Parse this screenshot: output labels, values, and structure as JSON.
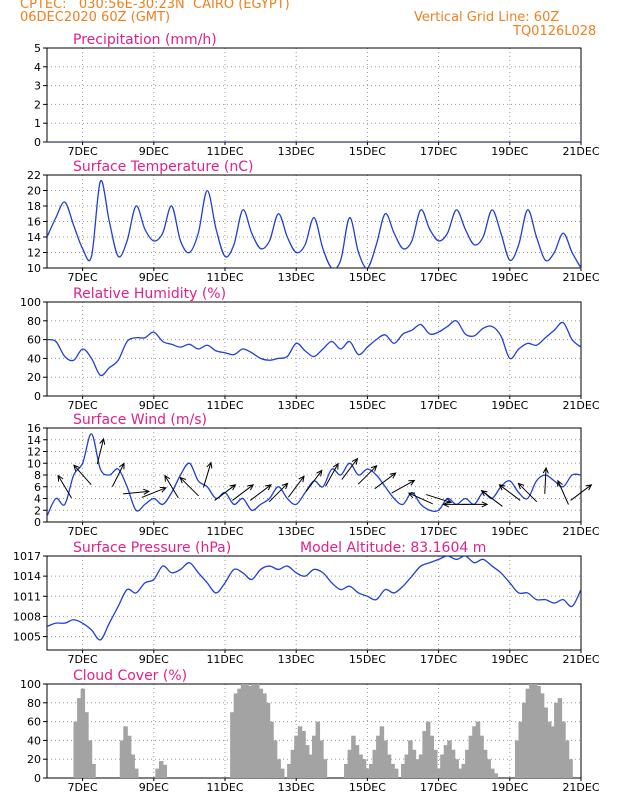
{
  "header": {
    "line1_left": "CPTEC:   030:56E-30:23N  CAIRO (EGYPT)",
    "line2_left": "06DEC2020 60Z (GMT)",
    "line1_right": "Vertical Grid Line: 60Z",
    "line2_right": "TQ0126L028"
  },
  "colors": {
    "header": "#f07f1e",
    "title": "#e0208c",
    "line": "#1f3fd8",
    "bars": "#a3a3a3",
    "arrows": "#000000"
  },
  "chart_data": [
    {
      "type": "line",
      "title": "Precipitation (mm/h)",
      "x_ticks": [
        "7DEC",
        "9DEC",
        "11DEC",
        "13DEC",
        "15DEC",
        "17DEC",
        "19DEC",
        "21DEC"
      ],
      "ylim": [
        0,
        5
      ],
      "y_ticks": [
        0,
        1,
        2,
        3,
        4,
        5
      ],
      "x": [
        6.0,
        21.0
      ],
      "values": [
        0,
        0
      ]
    },
    {
      "type": "line",
      "title": "Surface Temperature (nC)",
      "x_ticks": [
        "7DEC",
        "9DEC",
        "11DEC",
        "13DEC",
        "15DEC",
        "17DEC",
        "19DEC",
        "21DEC"
      ],
      "ylim": [
        10,
        22
      ],
      "y_ticks": [
        10,
        12,
        14,
        16,
        18,
        20,
        22
      ],
      "x": [
        6.0,
        6.25,
        6.5,
        6.75,
        7.0,
        7.25,
        7.5,
        7.75,
        8.0,
        8.25,
        8.5,
        8.75,
        9.0,
        9.25,
        9.5,
        9.75,
        10.0,
        10.25,
        10.5,
        10.75,
        11.0,
        11.25,
        11.5,
        11.75,
        12.0,
        12.25,
        12.5,
        12.75,
        13.0,
        13.25,
        13.5,
        13.75,
        14.0,
        14.25,
        14.5,
        14.75,
        15.0,
        15.25,
        15.5,
        15.75,
        16.0,
        16.25,
        16.5,
        16.75,
        17.0,
        17.25,
        17.5,
        17.75,
        18.0,
        18.25,
        18.5,
        18.75,
        19.0,
        19.25,
        19.5,
        19.75,
        20.0,
        20.25,
        20.5,
        20.75,
        21.0
      ],
      "values": [
        14.0,
        16.5,
        18.5,
        15.5,
        12.5,
        11.5,
        21.2,
        16.0,
        11.5,
        13.5,
        18.0,
        15.0,
        13.5,
        14.5,
        18.0,
        13.5,
        12.0,
        14.5,
        20.0,
        15.0,
        11.5,
        13.0,
        17.5,
        14.5,
        12.5,
        13.5,
        17.0,
        14.0,
        12.0,
        13.0,
        16.5,
        12.5,
        10.0,
        11.0,
        16.5,
        12.0,
        10.0,
        13.0,
        17.0,
        14.5,
        12.5,
        13.5,
        17.5,
        15.0,
        13.5,
        14.5,
        17.5,
        15.0,
        13.0,
        14.0,
        17.5,
        14.5,
        11.0,
        13.0,
        17.5,
        14.0,
        11.0,
        12.0,
        14.5,
        12.0,
        10.0
      ]
    },
    {
      "type": "line",
      "title": "Relative Humidity (%)",
      "x_ticks": [
        "7DEC",
        "9DEC",
        "11DEC",
        "13DEC",
        "15DEC",
        "17DEC",
        "19DEC",
        "21DEC"
      ],
      "ylim": [
        0,
        100
      ],
      "y_ticks": [
        0,
        20,
        40,
        60,
        80,
        100
      ],
      "x": [
        6.0,
        6.25,
        6.5,
        6.75,
        7.0,
        7.25,
        7.5,
        7.75,
        8.0,
        8.25,
        8.5,
        8.75,
        9.0,
        9.25,
        9.5,
        9.75,
        10.0,
        10.25,
        10.5,
        10.75,
        11.0,
        11.25,
        11.5,
        11.75,
        12.0,
        12.25,
        12.5,
        12.75,
        13.0,
        13.25,
        13.5,
        13.75,
        14.0,
        14.25,
        14.5,
        14.75,
        15.0,
        15.25,
        15.5,
        15.75,
        16.0,
        16.25,
        16.5,
        16.75,
        17.0,
        17.25,
        17.5,
        17.75,
        18.0,
        18.25,
        18.5,
        18.75,
        19.0,
        19.25,
        19.5,
        19.75,
        20.0,
        20.25,
        20.5,
        20.75,
        21.0
      ],
      "values": [
        60,
        58,
        42,
        38,
        50,
        40,
        22,
        30,
        38,
        58,
        62,
        62,
        68,
        58,
        55,
        52,
        55,
        50,
        54,
        48,
        46,
        44,
        50,
        46,
        40,
        38,
        40,
        42,
        56,
        48,
        42,
        50,
        58,
        50,
        58,
        44,
        52,
        60,
        65,
        56,
        66,
        70,
        76,
        66,
        68,
        74,
        80,
        66,
        64,
        72,
        74,
        64,
        40,
        50,
        56,
        54,
        62,
        70,
        78,
        60,
        52
      ]
    },
    {
      "type": "line",
      "title": "Surface Wind (m/s)",
      "x_ticks": [
        "7DEC",
        "9DEC",
        "11DEC",
        "13DEC",
        "15DEC",
        "17DEC",
        "19DEC",
        "21DEC"
      ],
      "ylim": [
        0,
        16
      ],
      "y_ticks": [
        0,
        2,
        4,
        6,
        8,
        10,
        12,
        14,
        16
      ],
      "x": [
        6.0,
        6.25,
        6.5,
        6.75,
        7.0,
        7.25,
        7.5,
        7.75,
        8.0,
        8.25,
        8.5,
        8.75,
        9.0,
        9.25,
        9.5,
        9.75,
        10.0,
        10.25,
        10.5,
        10.75,
        11.0,
        11.25,
        11.5,
        11.75,
        12.0,
        12.25,
        12.5,
        12.75,
        13.0,
        13.25,
        13.5,
        13.75,
        14.0,
        14.25,
        14.5,
        14.75,
        15.0,
        15.25,
        15.5,
        15.75,
        16.0,
        16.25,
        16.5,
        16.75,
        17.0,
        17.25,
        17.5,
        17.75,
        18.0,
        18.25,
        18.5,
        18.75,
        19.0,
        19.25,
        19.5,
        19.75,
        20.0,
        20.25,
        20.5,
        20.75,
        21.0
      ],
      "values": [
        1,
        4,
        3,
        8,
        10,
        15,
        9,
        8,
        9,
        6,
        2,
        3,
        4,
        3,
        5,
        8,
        10,
        7,
        6,
        4,
        5,
        3,
        4,
        2,
        3,
        4,
        6,
        4,
        3,
        5,
        7,
        6,
        9,
        8,
        10,
        8,
        9,
        8,
        6,
        4,
        3,
        5,
        3,
        2,
        2,
        4,
        3,
        4,
        3,
        5,
        4,
        6,
        7,
        5,
        4,
        7,
        8,
        7,
        6,
        8,
        8
      ],
      "arrows": [
        {
          "x": 6.5,
          "speed": 6,
          "dx": -0.6,
          "dy": 1.0
        },
        {
          "x": 7.0,
          "speed": 8,
          "dx": -0.8,
          "dy": 0.9
        },
        {
          "x": 7.5,
          "speed": 12,
          "dx": 0.25,
          "dy": 1.0
        },
        {
          "x": 8.0,
          "speed": 8,
          "dx": 0.5,
          "dy": 1.0
        },
        {
          "x": 8.5,
          "speed": 5,
          "dx": 1.0,
          "dy": 0.1
        },
        {
          "x": 9.0,
          "speed": 5,
          "dx": 1.0,
          "dy": 0.4
        },
        {
          "x": 9.5,
          "speed": 6,
          "dx": -0.6,
          "dy": 1.0
        },
        {
          "x": 10.0,
          "speed": 6,
          "dx": -0.8,
          "dy": 0.8
        },
        {
          "x": 10.5,
          "speed": 8,
          "dx": 0.3,
          "dy": 1.0
        },
        {
          "x": 11.0,
          "speed": 5,
          "dx": 0.8,
          "dy": 0.6
        },
        {
          "x": 11.5,
          "speed": 5,
          "dx": 0.8,
          "dy": 0.6
        },
        {
          "x": 12.0,
          "speed": 5,
          "dx": 0.8,
          "dy": 0.6
        },
        {
          "x": 12.5,
          "speed": 5,
          "dx": 0.7,
          "dy": 0.7
        },
        {
          "x": 13.0,
          "speed": 6,
          "dx": 0.6,
          "dy": 0.8
        },
        {
          "x": 13.5,
          "speed": 7,
          "dx": 0.6,
          "dy": 0.8
        },
        {
          "x": 14.0,
          "speed": 8,
          "dx": 0.5,
          "dy": 0.9
        },
        {
          "x": 14.5,
          "speed": 9,
          "dx": 0.6,
          "dy": 0.8
        },
        {
          "x": 15.0,
          "speed": 8,
          "dx": 0.7,
          "dy": 0.7
        },
        {
          "x": 15.5,
          "speed": 7,
          "dx": 0.8,
          "dy": 0.6
        },
        {
          "x": 16.0,
          "speed": 6,
          "dx": 0.9,
          "dy": 0.5
        },
        {
          "x": 16.5,
          "speed": 4,
          "dx": -0.9,
          "dy": 0.4
        },
        {
          "x": 17.0,
          "speed": 4,
          "dx": 0.95,
          "dy": -0.3
        },
        {
          "x": 17.5,
          "speed": 3,
          "dx": -1.0,
          "dy": 0.0
        },
        {
          "x": 18.0,
          "speed": 3,
          "dx": 1.0,
          "dy": 0.0
        },
        {
          "x": 18.5,
          "speed": 4,
          "dx": -0.8,
          "dy": 0.6
        },
        {
          "x": 19.0,
          "speed": 5,
          "dx": -0.8,
          "dy": 0.6
        },
        {
          "x": 19.5,
          "speed": 5,
          "dx": -0.7,
          "dy": 0.7
        },
        {
          "x": 20.0,
          "speed": 7,
          "dx": 0.05,
          "dy": 1.0
        },
        {
          "x": 20.5,
          "speed": 5,
          "dx": -0.4,
          "dy": 0.9
        },
        {
          "x": 21.0,
          "speed": 5,
          "dx": 0.8,
          "dy": 0.6
        }
      ]
    },
    {
      "type": "line",
      "title": "Surface Pressure (hPa)",
      "annotation": "Model Altitude: 83.1604 m",
      "x_ticks": [
        "7DEC",
        "9DEC",
        "11DEC",
        "13DEC",
        "15DEC",
        "17DEC",
        "19DEC",
        "21DEC"
      ],
      "ylim": [
        1003,
        1017
      ],
      "y_ticks": [
        1005,
        1008,
        1011,
        1014,
        1017
      ],
      "x": [
        6.0,
        6.25,
        6.5,
        6.75,
        7.0,
        7.25,
        7.5,
        7.75,
        8.0,
        8.25,
        8.5,
        8.75,
        9.0,
        9.25,
        9.5,
        9.75,
        10.0,
        10.25,
        10.5,
        10.75,
        11.0,
        11.25,
        11.5,
        11.75,
        12.0,
        12.25,
        12.5,
        12.75,
        13.0,
        13.25,
        13.5,
        13.75,
        14.0,
        14.25,
        14.5,
        14.75,
        15.0,
        15.25,
        15.5,
        15.75,
        16.0,
        16.25,
        16.5,
        16.75,
        17.0,
        17.25,
        17.5,
        17.75,
        18.0,
        18.25,
        18.5,
        18.75,
        19.0,
        19.25,
        19.5,
        19.75,
        20.0,
        20.25,
        20.5,
        20.75,
        21.0
      ],
      "values": [
        1006.5,
        1007.0,
        1007.0,
        1007.5,
        1007.0,
        1006.0,
        1004.5,
        1007.0,
        1009.5,
        1012.0,
        1011.5,
        1013.0,
        1013.5,
        1015.5,
        1014.5,
        1015.0,
        1016.0,
        1014.5,
        1013.0,
        1011.5,
        1013.0,
        1015.0,
        1014.5,
        1013.5,
        1015.0,
        1015.5,
        1015.0,
        1015.5,
        1014.5,
        1014.0,
        1015.0,
        1014.5,
        1013.0,
        1012.0,
        1012.5,
        1011.5,
        1011.0,
        1010.5,
        1012.0,
        1011.5,
        1012.5,
        1014.0,
        1015.5,
        1016.0,
        1016.5,
        1017.0,
        1016.5,
        1017.0,
        1016.0,
        1016.5,
        1015.5,
        1014.5,
        1013.0,
        1011.5,
        1011.5,
        1010.5,
        1010.5,
        1010.0,
        1010.5,
        1009.5,
        1012.0
      ]
    },
    {
      "type": "bar",
      "title": "Cloud Cover (%)",
      "x_ticks": [
        "7DEC",
        "9DEC",
        "11DEC",
        "13DEC",
        "15DEC",
        "17DEC",
        "19DEC",
        "21DEC"
      ],
      "ylim": [
        0,
        100
      ],
      "y_ticks": [
        0,
        20,
        40,
        60,
        80,
        100
      ],
      "x": [
        6.8,
        6.9,
        7.0,
        7.1,
        7.2,
        7.3,
        8.1,
        8.2,
        8.3,
        8.4,
        8.5,
        9.1,
        9.2,
        9.3,
        11.2,
        11.3,
        11.4,
        11.5,
        11.6,
        11.7,
        11.8,
        11.9,
        12.0,
        12.1,
        12.2,
        12.3,
        12.4,
        12.5,
        12.6,
        12.8,
        12.9,
        13.0,
        13.1,
        13.2,
        13.3,
        13.4,
        13.5,
        13.6,
        13.7,
        13.8,
        14.4,
        14.5,
        14.6,
        14.7,
        14.8,
        14.9,
        15.0,
        15.1,
        15.2,
        15.3,
        15.4,
        15.5,
        15.6,
        15.7,
        15.8,
        16.0,
        16.1,
        16.2,
        16.3,
        16.4,
        16.5,
        16.6,
        16.7,
        16.8,
        16.9,
        17.0,
        17.1,
        17.2,
        17.3,
        17.4,
        17.5,
        17.6,
        17.7,
        17.8,
        17.9,
        18.0,
        18.1,
        18.2,
        18.3,
        18.4,
        18.5,
        18.6,
        19.2,
        19.3,
        19.4,
        19.5,
        19.6,
        19.7,
        19.8,
        19.9,
        20.0,
        20.1,
        20.2,
        20.3,
        20.4,
        20.5,
        20.6,
        20.7
      ],
      "values": [
        60,
        85,
        95,
        70,
        40,
        15,
        40,
        55,
        45,
        25,
        10,
        10,
        18,
        14,
        70,
        90,
        95,
        100,
        100,
        98,
        100,
        100,
        95,
        90,
        80,
        60,
        40,
        20,
        10,
        15,
        30,
        45,
        55,
        50,
        35,
        25,
        45,
        60,
        40,
        20,
        15,
        30,
        45,
        35,
        25,
        20,
        10,
        15,
        30,
        45,
        55,
        40,
        25,
        15,
        10,
        15,
        25,
        40,
        30,
        20,
        25,
        50,
        60,
        45,
        30,
        10,
        25,
        35,
        40,
        30,
        20,
        10,
        15,
        30,
        45,
        55,
        60,
        45,
        30,
        20,
        10,
        5,
        40,
        60,
        80,
        95,
        100,
        100,
        98,
        90,
        75,
        60,
        55,
        80,
        85,
        60,
        40,
        20
      ]
    }
  ]
}
